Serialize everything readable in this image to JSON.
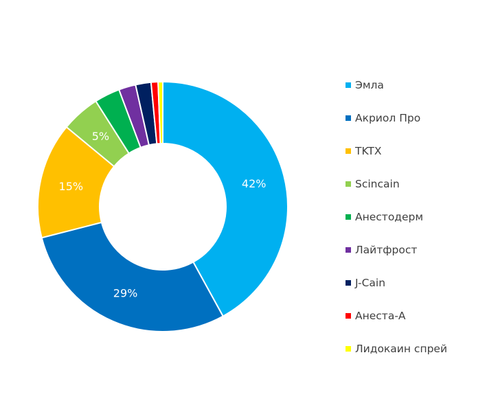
{
  "chart_data": {
    "type": "pie",
    "variant": "donut",
    "title": "",
    "legend_position": "right",
    "categories": [
      "Эмла",
      "Акриол Про",
      "TKTX",
      "Scincain",
      "Анестодерм",
      "Лайтфрост",
      "J-Cain",
      "Анеста-А",
      "Лидокаин спрей"
    ],
    "values": [
      42,
      29,
      15,
      5,
      3.3,
      2.2,
      2.0,
      0.9,
      0.6
    ],
    "labels": [
      "42%",
      "29%",
      "15%",
      "5%",
      "",
      "",
      "",
      "",
      ""
    ],
    "colors": [
      "#00B0F0",
      "#0070C0",
      "#FFC000",
      "#92D050",
      "#00B050",
      "#7030A0",
      "#002060",
      "#FF0000",
      "#FFFF00"
    ]
  }
}
